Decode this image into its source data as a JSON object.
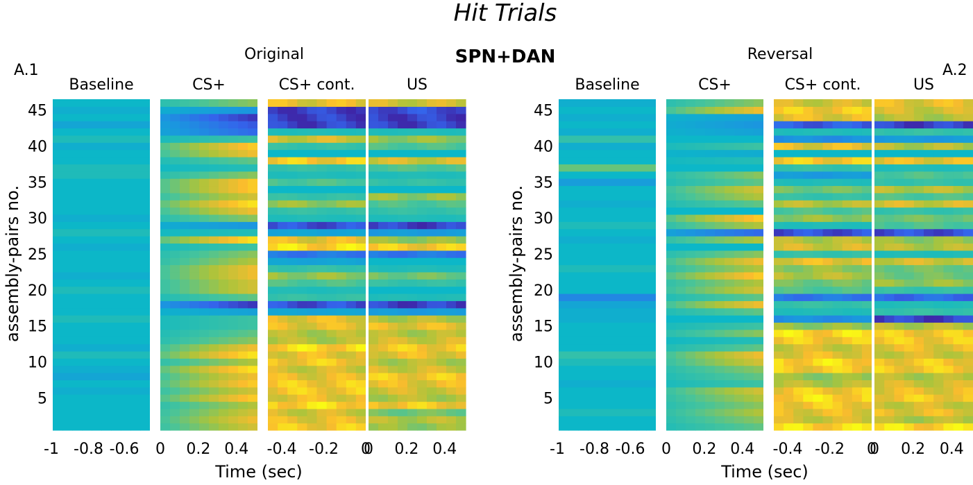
{
  "figure": {
    "title": "Hit Trials",
    "center_label": "SPN+DAN"
  },
  "chart_data": [
    {
      "type": "heatmap",
      "panel_label": "A.1",
      "title": "Original",
      "ylabel": "assembly-pairs no.",
      "xlabel": "Time (sec)",
      "y_ticks": [
        5,
        10,
        15,
        20,
        25,
        30,
        35,
        40,
        45
      ],
      "n_rows": 46,
      "colormap": "parula",
      "segments": [
        {
          "name": "Baseline",
          "x_range": [
            -1,
            -0.5
          ],
          "tick_labels": [
            "-1",
            "-0.8",
            "-0.6"
          ],
          "row_means": [
            0.0,
            0.0,
            0.0,
            0.0,
            0.0,
            -0.1,
            0.0,
            -0.2,
            -0.1,
            0.0,
            0.1,
            -0.1,
            0.0,
            0.0,
            0.0,
            0.1,
            0.0,
            0.0,
            0.0,
            0.1,
            0.0,
            -0.1,
            0.0,
            0.0,
            0.0,
            -0.1,
            0.0,
            0.1,
            0.0,
            -0.1,
            0.0,
            0.0,
            0.0,
            0.0,
            0.0,
            0.1,
            0.1,
            0.0,
            0.0,
            -0.1,
            0.1,
            0.0,
            -0.2,
            0.0,
            -0.1,
            0.0
          ]
        },
        {
          "name": "CS+",
          "x_range": [
            0,
            0.5
          ],
          "tick_labels": [
            "0",
            "0.2",
            "0.4"
          ],
          "row_means": [
            0.6,
            0.7,
            0.6,
            0.5,
            0.8,
            0.6,
            0.8,
            0.7,
            0.9,
            0.5,
            0.9,
            0.7,
            0.4,
            0.3,
            0.2,
            0.2,
            -0.2,
            -0.9,
            0.3,
            0.6,
            0.6,
            0.7,
            0.7,
            0.5,
            0.4,
            0.2,
            0.9,
            0.1,
            -0.3,
            0.4,
            0.7,
            0.9,
            0.6,
            0.8,
            0.8,
            0.4,
            0.1,
            0.3,
            0.7,
            0.8,
            0.2,
            -0.6,
            -0.7,
            -0.9,
            -0.3,
            0.4
          ]
        },
        {
          "name": "CS+ cont.",
          "x_range": [
            -0.5,
            0
          ],
          "tick_labels": [
            "-0.4",
            "-0.2",
            "0"
          ],
          "row_means": [
            0.9,
            0.8,
            0.7,
            1.0,
            0.8,
            0.9,
            0.9,
            0.8,
            0.7,
            0.9,
            0.8,
            1.0,
            0.6,
            0.6,
            0.8,
            0.8,
            -0.2,
            -0.9,
            0.2,
            0.1,
            0.3,
            0.5,
            0.2,
            -0.2,
            -0.6,
            1.0,
            0.8,
            -0.2,
            -0.9,
            0.1,
            0.2,
            0.5,
            0.2,
            0.0,
            0.3,
            0.1,
            0.2,
            0.9,
            0.0,
            0.2,
            0.7,
            0.1,
            -1.0,
            -1.0,
            -1.0,
            0.8
          ]
        },
        {
          "name": "US",
          "x_range": [
            0,
            0.5
          ],
          "tick_labels": [
            "0",
            "0.2",
            "0.4"
          ],
          "row_means": [
            0.5,
            0.6,
            0.4,
            0.9,
            0.6,
            0.7,
            0.8,
            0.9,
            0.7,
            0.6,
            0.8,
            0.9,
            0.7,
            0.6,
            0.8,
            0.6,
            -0.3,
            -1.0,
            0.1,
            0.0,
            0.2,
            0.4,
            0.1,
            0.0,
            -0.6,
            0.9,
            0.5,
            -0.3,
            -1.0,
            0.1,
            0.2,
            0.3,
            0.5,
            0.0,
            0.2,
            0.1,
            0.3,
            0.7,
            0.0,
            0.3,
            0.5,
            0.1,
            -1.0,
            -1.0,
            -0.9,
            0.7
          ]
        }
      ]
    },
    {
      "type": "heatmap",
      "panel_label": "A.2",
      "title": "Reversal",
      "ylabel": "assembly-pairs no.",
      "xlabel": "Time (sec)",
      "y_ticks": [
        5,
        10,
        15,
        20,
        25,
        30,
        35,
        40,
        45
      ],
      "n_rows": 46,
      "colormap": "parula",
      "segments": [
        {
          "name": "Baseline",
          "x_range": [
            -1,
            -0.5
          ],
          "tick_labels": [
            "-1",
            "-0.8",
            "-0.6"
          ],
          "row_means": [
            0.0,
            0.0,
            0.1,
            0.0,
            0.0,
            0.0,
            -0.1,
            0.0,
            0.0,
            0.1,
            0.2,
            0.0,
            0.0,
            0.0,
            0.0,
            -0.1,
            -0.1,
            -0.2,
            -0.5,
            0.0,
            0.0,
            0.0,
            0.1,
            0.0,
            0.0,
            0.0,
            -0.1,
            0.0,
            0.1,
            0.0,
            0.0,
            -0.1,
            0.0,
            0.0,
            -0.3,
            0.0,
            0.4,
            0.0,
            0.0,
            -0.1,
            0.2,
            -0.1,
            0.0,
            -0.1,
            0.0,
            -0.1
          ]
        },
        {
          "name": "CS+",
          "x_range": [
            0,
            0.5
          ],
          "tick_labels": [
            "0",
            "0.2",
            "0.4"
          ],
          "row_means": [
            0.3,
            0.4,
            0.5,
            0.4,
            0.5,
            0.6,
            0.2,
            0.3,
            0.4,
            0.6,
            0.7,
            0.3,
            0.1,
            0.4,
            0.2,
            0.0,
            0.3,
            0.7,
            0.3,
            0.6,
            0.5,
            0.8,
            0.5,
            0.7,
            0.4,
            0.0,
            0.5,
            -0.6,
            0.5,
            0.8,
            0.0,
            0.3,
            0.5,
            0.6,
            0.3,
            0.4,
            0.0,
            0.1,
            -0.1,
            0.2,
            0.0,
            -0.2,
            -0.3,
            -0.2,
            0.7,
            0.4
          ]
        },
        {
          "name": "CS+ cont.",
          "x_range": [
            -0.5,
            0
          ],
          "tick_labels": [
            "-0.4",
            "-0.2",
            "0"
          ],
          "row_means": [
            1.0,
            0.7,
            0.8,
            0.9,
            1.0,
            0.9,
            0.6,
            0.5,
            0.9,
            1.0,
            0.8,
            0.7,
            0.9,
            1.0,
            0.5,
            -0.4,
            0.1,
            0.2,
            -0.6,
            0.3,
            0.4,
            0.6,
            0.5,
            0.8,
            0.2,
            0.7,
            0.6,
            -0.9,
            0.1,
            0.5,
            0.3,
            0.6,
            0.2,
            0.4,
            0.1,
            -0.3,
            0.2,
            0.9,
            0.0,
            0.8,
            -0.4,
            0.1,
            -0.8,
            0.8,
            0.9,
            0.7
          ]
        },
        {
          "name": "US",
          "x_range": [
            0,
            0.5
          ],
          "tick_labels": [
            "0",
            "0.2",
            "0.4"
          ],
          "row_means": [
            1.0,
            0.6,
            0.8,
            0.7,
            0.9,
            0.8,
            0.7,
            0.6,
            0.9,
            0.9,
            0.7,
            0.8,
            0.9,
            0.9,
            0.6,
            -1.0,
            0.2,
            0.1,
            -0.7,
            0.2,
            0.5,
            0.4,
            0.4,
            0.7,
            0.1,
            0.6,
            0.5,
            -0.9,
            0.3,
            0.4,
            0.2,
            0.7,
            0.3,
            0.6,
            0.2,
            0.3,
            0.1,
            0.8,
            0.0,
            0.6,
            -0.3,
            0.2,
            -1.0,
            0.6,
            0.7,
            0.8
          ]
        }
      ]
    }
  ]
}
